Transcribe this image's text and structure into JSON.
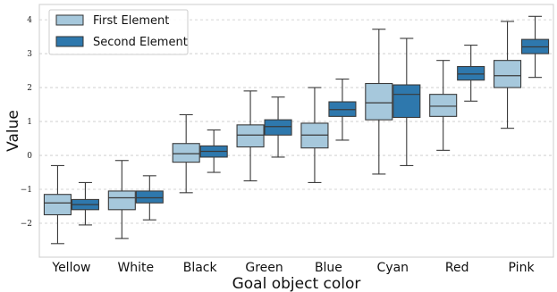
{
  "chart_data": {
    "type": "box",
    "xlabel": "Goal object color",
    "ylabel": "Value",
    "ylim": [
      -3.0,
      4.45
    ],
    "yticks": [
      -2,
      -1,
      0,
      1,
      2,
      3,
      4
    ],
    "grid": "horizontal dashed",
    "legend_position": "top-left",
    "categories": [
      "Yellow",
      "White",
      "Black",
      "Green",
      "Blue",
      "Cyan",
      "Red",
      "Pink"
    ],
    "series": [
      {
        "name": "First Element",
        "color": "#a6c8dc",
        "boxes": [
          {
            "whislo": -2.6,
            "q1": -1.75,
            "med": -1.4,
            "q3": -1.15,
            "whishi": -0.3
          },
          {
            "whislo": -2.45,
            "q1": -1.6,
            "med": -1.25,
            "q3": -1.05,
            "whishi": -0.15
          },
          {
            "whislo": -1.1,
            "q1": -0.2,
            "med": 0.05,
            "q3": 0.35,
            "whishi": 1.2
          },
          {
            "whislo": -0.75,
            "q1": 0.25,
            "med": 0.6,
            "q3": 0.9,
            "whishi": 1.9
          },
          {
            "whislo": -0.8,
            "q1": 0.22,
            "med": 0.6,
            "q3": 0.95,
            "whishi": 2.0
          },
          {
            "whislo": -0.55,
            "q1": 1.05,
            "med": 1.55,
            "q3": 2.12,
            "whishi": 3.72
          },
          {
            "whislo": 0.15,
            "q1": 1.15,
            "med": 1.45,
            "q3": 1.8,
            "whishi": 2.8
          },
          {
            "whislo": 0.8,
            "q1": 2.0,
            "med": 2.35,
            "q3": 2.8,
            "whishi": 3.95
          }
        ]
      },
      {
        "name": "Second Element",
        "color": "#2e78ad",
        "boxes": [
          {
            "whislo": -2.05,
            "q1": -1.6,
            "med": -1.45,
            "q3": -1.3,
            "whishi": -0.8
          },
          {
            "whislo": -1.9,
            "q1": -1.4,
            "med": -1.25,
            "q3": -1.05,
            "whishi": -0.6
          },
          {
            "whislo": -0.5,
            "q1": -0.05,
            "med": 0.12,
            "q3": 0.28,
            "whishi": 0.75
          },
          {
            "whislo": -0.05,
            "q1": 0.6,
            "med": 0.85,
            "q3": 1.05,
            "whishi": 1.72
          },
          {
            "whislo": 0.45,
            "q1": 1.15,
            "med": 1.35,
            "q3": 1.58,
            "whishi": 2.25
          },
          {
            "whislo": -0.3,
            "q1": 1.12,
            "med": 1.8,
            "q3": 2.08,
            "whishi": 3.45
          },
          {
            "whislo": 1.6,
            "q1": 2.22,
            "med": 2.4,
            "q3": 2.62,
            "whishi": 3.25
          },
          {
            "whislo": 2.3,
            "q1": 3.0,
            "med": 3.2,
            "q3": 3.42,
            "whishi": 4.1
          }
        ]
      }
    ]
  }
}
